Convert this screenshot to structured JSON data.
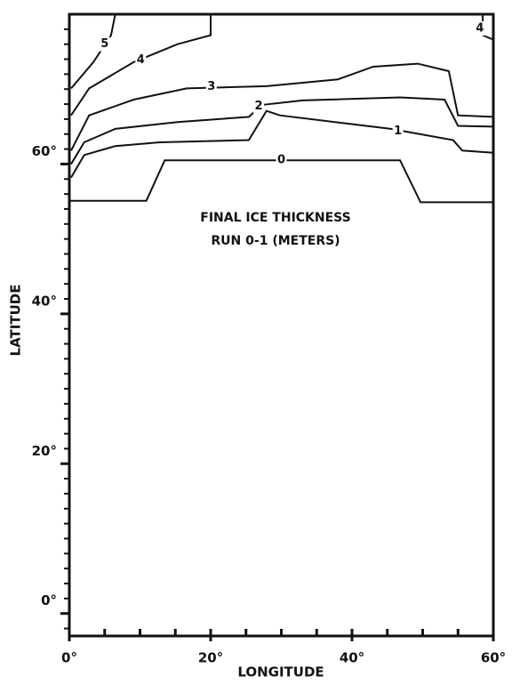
{
  "chart_data": {
    "type": "contour",
    "title": "FINAL ICE THICKNESS",
    "subtitle": "RUN  0-1  (METERS)",
    "x_label": "LONGITUDE",
    "y_label": "LATITUDE",
    "xlim": [
      0,
      60
    ],
    "ylim": [
      -3,
      80
    ],
    "xticks": [
      {
        "value": 0,
        "label": "0°"
      },
      {
        "value": 20,
        "label": "20°"
      },
      {
        "value": 40,
        "label": "40°"
      },
      {
        "value": 60,
        "label": "60°"
      }
    ],
    "yticks": [
      {
        "value": 0,
        "label": "0°"
      },
      {
        "value": 20,
        "label": "20°"
      },
      {
        "value": 40,
        "label": "40°"
      },
      {
        "value": 60,
        "label": "60°"
      }
    ],
    "xminor": [
      0,
      5,
      10,
      15,
      20,
      25,
      30,
      35,
      40,
      45,
      50,
      55,
      60
    ],
    "yminor": [
      -2,
      0,
      2,
      4,
      6,
      8,
      10,
      12,
      14,
      16,
      18,
      20,
      22,
      24,
      26,
      28,
      30,
      32,
      34,
      36,
      38,
      40,
      42,
      44,
      46,
      48,
      50,
      52,
      54,
      56,
      58,
      60,
      62,
      64,
      66,
      68,
      70,
      72,
      74,
      76,
      78
    ],
    "color": "#111111",
    "contours": [
      {
        "level": 0,
        "x": [
          0,
          10.9,
          13.5,
          46.8,
          49.7,
          60
        ],
        "y": [
          55.1,
          55.1,
          60.5,
          60.5,
          54.9,
          54.9
        ]
      },
      {
        "level": 1,
        "x": [
          0.25,
          2.1,
          6.5,
          12.8,
          25.4,
          27.9,
          29.8,
          45.5,
          54.3,
          55.6,
          60
        ],
        "y": [
          58.2,
          61.2,
          62.4,
          62.9,
          63.2,
          67.1,
          66.5,
          64.7,
          63.2,
          61.8,
          61.5
        ]
      },
      {
        "level": 2,
        "x": [
          0.25,
          2.1,
          6.5,
          15.3,
          25.4,
          27.3,
          33,
          46.8,
          53.1,
          55,
          60
        ],
        "y": [
          60,
          62.9,
          64.7,
          65.6,
          66.3,
          67.9,
          68.5,
          68.9,
          68.6,
          65.1,
          65
        ]
      },
      {
        "level": 3,
        "x": [
          0.25,
          2.8,
          9.1,
          16.6,
          27.9,
          38,
          43,
          49.3,
          53.7,
          55,
          60
        ],
        "y": [
          61.8,
          66.5,
          68.6,
          70.1,
          70.4,
          71.3,
          73,
          73.4,
          72.4,
          66.5,
          66.3
        ]
      },
      {
        "level": 4,
        "x": [
          0.25,
          2.8,
          9.1,
          15.3,
          20,
          20
        ],
        "y": [
          66.5,
          70.1,
          73.6,
          76,
          77.2,
          80
        ]
      },
      {
        "level": 4,
        "x": [
          58.5,
          58.5,
          60
        ],
        "y": [
          80,
          77.2,
          76.6
        ]
      },
      {
        "level": 5,
        "x": [
          0.25,
          3.4,
          5.9,
          6.5
        ],
        "y": [
          70.1,
          73.6,
          77.2,
          80
        ]
      }
    ]
  }
}
